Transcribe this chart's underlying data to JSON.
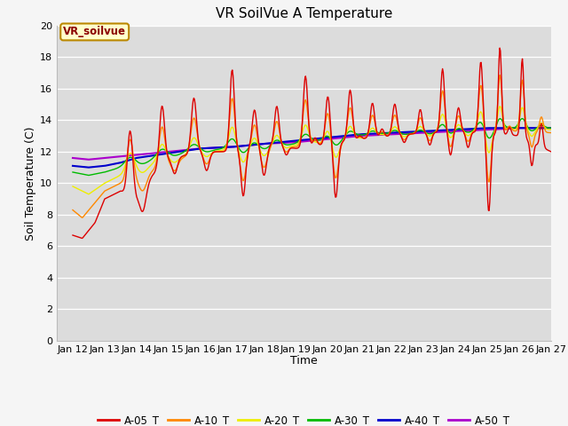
{
  "title": "VR SoilVue A Temperature",
  "xlabel": "Time",
  "ylabel": "Soil Temperature (C)",
  "annotation": "VR_soilvue",
  "ylim": [
    0,
    20
  ],
  "yticks": [
    0,
    2,
    4,
    6,
    8,
    10,
    12,
    14,
    16,
    18,
    20
  ],
  "plot_bg": "#dcdcdc",
  "fig_bg": "#f5f5f5",
  "series_colors": {
    "A-05_T": "#dd0000",
    "A-10_T": "#ff8800",
    "A-20_T": "#eeee00",
    "A-30_T": "#00bb00",
    "A-40_T": "#0000cc",
    "A-50_T": "#aa00cc"
  },
  "xtick_labels": [
    "Jan 12",
    "Jan 13",
    "Jan 14",
    "Jan 15",
    "Jan 16",
    "Jan 17",
    "Jan 18",
    "Jan 19",
    "Jan 20",
    "Jan 21",
    "Jan 22",
    "Jan 23",
    "Jan 24",
    "Jan 25",
    "Jan 26",
    "Jan 27"
  ],
  "xtick_positions": [
    12,
    13,
    14,
    15,
    16,
    17,
    18,
    19,
    20,
    21,
    22,
    23,
    24,
    25,
    26,
    27
  ],
  "xlim": [
    11.5,
    27.0
  ]
}
